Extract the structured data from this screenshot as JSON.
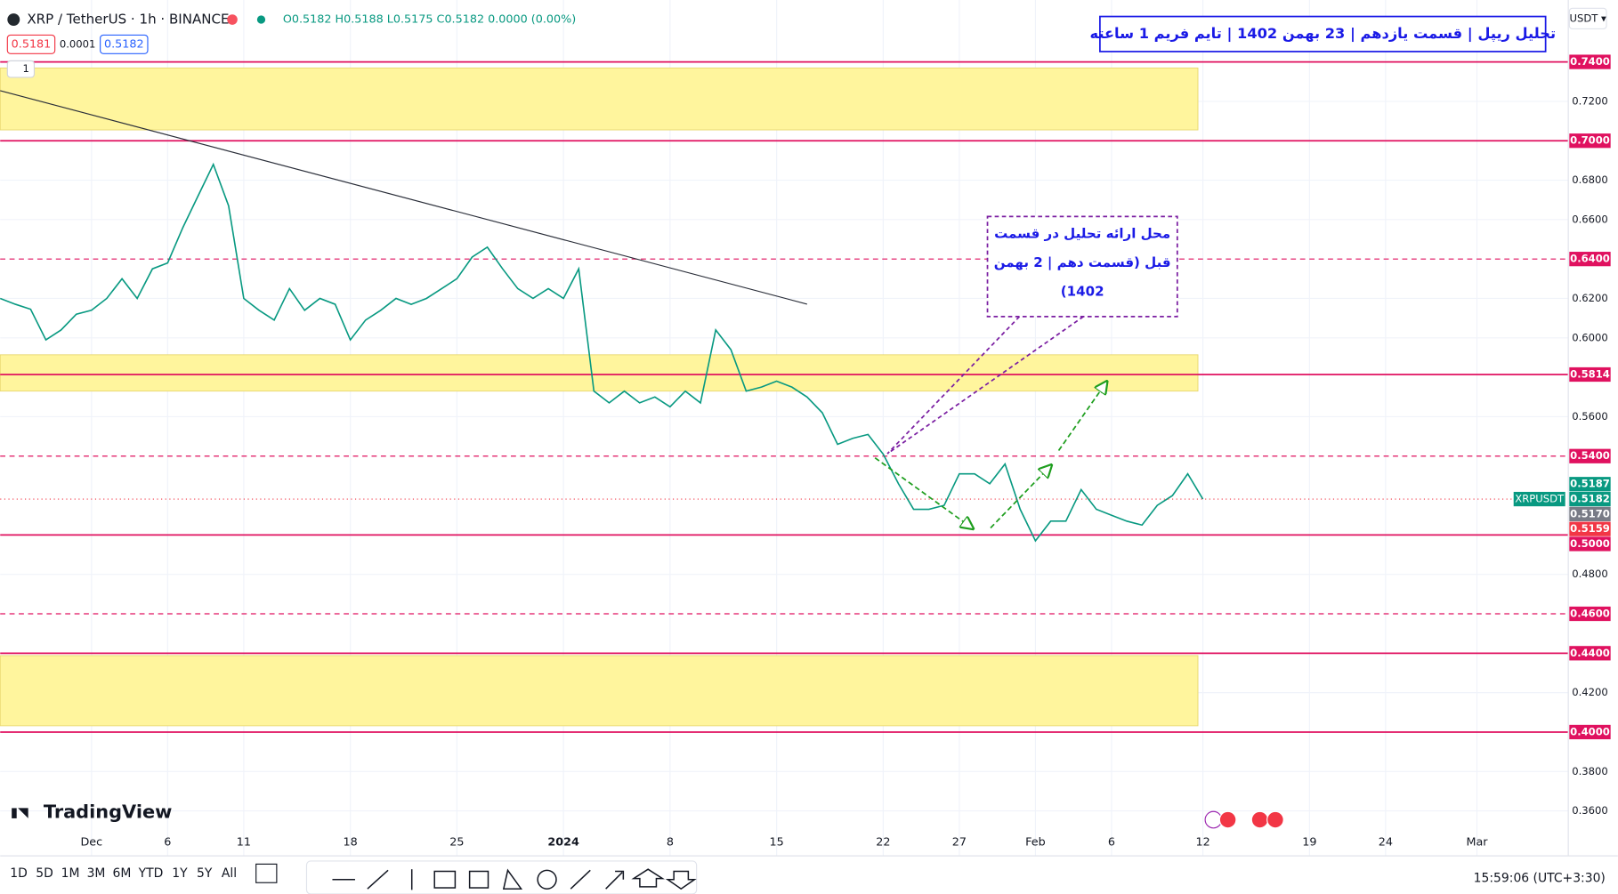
{
  "header": {
    "symbol": "XRP / TetherUS · 1h · BINANCE",
    "ohlc": "O0.5182 H0.5188 L0.5175 C0.5182 0.0000 (0.00%)",
    "sell": "0.5181",
    "spread": "0.0001",
    "buy": "0.5182",
    "currency": "USDT ▾",
    "interval": "1"
  },
  "chart_data": {
    "type": "line",
    "title": "تحلیل ریپل | قسمت یازدهم | 23 بهمن 1402 | تایم فریم 1 ساعته",
    "annotation": [
      "محل ارائه تحلیل در قسمت",
      "قبل (قسمت دهم | 2 بهمن",
      "1402)"
    ],
    "x": [
      "2023-11-25",
      "2023-11-26",
      "2023-11-27",
      "2023-11-28",
      "2023-11-29",
      "2023-11-30",
      "2023-12-01",
      "2023-12-02",
      "2023-12-03",
      "2023-12-04",
      "2023-12-05",
      "2023-12-06",
      "2023-12-07",
      "2023-12-08",
      "2023-12-09",
      "2023-12-10",
      "2023-12-11",
      "2023-12-12",
      "2023-12-13",
      "2023-12-14",
      "2023-12-15",
      "2023-12-16",
      "2023-12-17",
      "2023-12-18",
      "2023-12-19",
      "2023-12-20",
      "2023-12-21",
      "2023-12-22",
      "2023-12-23",
      "2023-12-24",
      "2023-12-25",
      "2023-12-26",
      "2023-12-27",
      "2023-12-28",
      "2023-12-29",
      "2023-12-30",
      "2023-12-31",
      "2024-01-01",
      "2024-01-02",
      "2024-01-03",
      "2024-01-04",
      "2024-01-05",
      "2024-01-06",
      "2024-01-07",
      "2024-01-08",
      "2024-01-09",
      "2024-01-10",
      "2024-01-11",
      "2024-01-12",
      "2024-01-13",
      "2024-01-14",
      "2024-01-15",
      "2024-01-16",
      "2024-01-17",
      "2024-01-18",
      "2024-01-19",
      "2024-01-20",
      "2024-01-21",
      "2024-01-22",
      "2024-01-23",
      "2024-01-24",
      "2024-01-25",
      "2024-01-26",
      "2024-01-27",
      "2024-01-28",
      "2024-01-29",
      "2024-01-30",
      "2024-01-31",
      "2024-02-01",
      "2024-02-02",
      "2024-02-03",
      "2024-02-04",
      "2024-02-05",
      "2024-02-06",
      "2024-02-07",
      "2024-02-08",
      "2024-02-09",
      "2024-02-10",
      "2024-02-11",
      "2024-02-12"
    ],
    "series": [
      {
        "name": "XRPUSDT",
        "color": "#089981",
        "values": [
          0.62,
          0.617,
          0.6145,
          0.599,
          0.604,
          0.612,
          0.614,
          0.62,
          0.63,
          0.62,
          0.635,
          0.638,
          0.656,
          0.672,
          0.688,
          0.667,
          0.62,
          0.614,
          0.609,
          0.625,
          0.614,
          0.62,
          0.617,
          0.599,
          0.609,
          0.614,
          0.62,
          0.617,
          0.62,
          0.625,
          0.63,
          0.641,
          0.646,
          0.635,
          0.625,
          0.62,
          0.625,
          0.62,
          0.635,
          0.573,
          0.567,
          0.573,
          0.567,
          0.57,
          0.565,
          0.573,
          0.567,
          0.604,
          0.594,
          0.573,
          0.575,
          0.578,
          0.575,
          0.57,
          0.562,
          0.546,
          0.549,
          0.551,
          0.541,
          0.526,
          0.513,
          0.513,
          0.515,
          0.531,
          0.531,
          0.526,
          0.536,
          0.513,
          0.497,
          0.507,
          0.507,
          0.523,
          0.513,
          0.51,
          0.507,
          0.505,
          0.515,
          0.52,
          0.531,
          0.5182
        ]
      }
    ],
    "xlim": [
      "2023-11-25",
      "2024-03-07"
    ],
    "ylim": [
      0.3372,
      0.7714
    ],
    "grid": true,
    "xticks": [
      {
        "value": "2023-12-01",
        "label": "Dec"
      },
      {
        "value": "2023-12-06",
        "label": "6"
      },
      {
        "value": "2023-12-11",
        "label": "11"
      },
      {
        "value": "2023-12-18",
        "label": "18"
      },
      {
        "value": "2023-12-25",
        "label": "25"
      },
      {
        "value": "2024-01-01",
        "label": "2024"
      },
      {
        "value": "2024-01-08",
        "label": "8"
      },
      {
        "value": "2024-01-15",
        "label": "15"
      },
      {
        "value": "2024-01-22",
        "label": "22"
      },
      {
        "value": "2024-01-27",
        "label": "27"
      },
      {
        "value": "2024-02-01",
        "label": "Feb"
      },
      {
        "value": "2024-02-06",
        "label": "6"
      },
      {
        "value": "2024-02-12",
        "label": "12"
      },
      {
        "value": "2024-02-19",
        "label": "19"
      },
      {
        "value": "2024-02-24",
        "label": "24"
      },
      {
        "value": "2024-03-01",
        "label": "Mar"
      }
    ],
    "yticks": [
      {
        "value": 0.72,
        "label": "0.7200"
      },
      {
        "value": 0.68,
        "label": "0.6800"
      },
      {
        "value": 0.66,
        "label": "0.6600"
      },
      {
        "value": 0.62,
        "label": "0.6200"
      },
      {
        "value": 0.6,
        "label": "0.6000"
      },
      {
        "value": 0.56,
        "label": "0.5600"
      },
      {
        "value": 0.48,
        "label": "0.4800"
      },
      {
        "value": 0.42,
        "label": "0.4200"
      },
      {
        "value": 0.38,
        "label": "0.3800"
      },
      {
        "value": 0.36,
        "label": "0.3600"
      }
    ],
    "levels": [
      {
        "value": 0.74,
        "label": "0.7400",
        "dashed": false
      },
      {
        "value": 0.7,
        "label": "0.7000",
        "dashed": false
      },
      {
        "value": 0.64,
        "label": "0.6400",
        "dashed": true
      },
      {
        "value": 0.5814,
        "label": "0.5814",
        "dashed": false
      },
      {
        "value": 0.54,
        "label": "0.5400",
        "dashed": true
      },
      {
        "value": 0.5,
        "label": "0.5000",
        "dashed": false
      },
      {
        "value": 0.46,
        "label": "0.4600",
        "dashed": true
      },
      {
        "value": 0.44,
        "label": "0.4400",
        "dashed": false
      },
      {
        "value": 0.4,
        "label": "0.4000",
        "dashed": false
      }
    ],
    "level_color": "#e0115f",
    "zones": [
      {
        "from": 0.7055,
        "to": 0.7369
      },
      {
        "from": 0.573,
        "to": 0.5914
      },
      {
        "from": 0.4032,
        "to": 0.4388
      }
    ],
    "zone_color": "#fff59d",
    "trendline": {
      "x": [
        "2023-11-25",
        "2024-01-17"
      ],
      "values": [
        0.7254,
        0.6171
      ],
      "color": "#2a2e39"
    },
    "price_tags": [
      {
        "value": 0.5187,
        "label": "0.5187",
        "color": "#089981"
      },
      {
        "value": 0.5182,
        "label": "0.5182",
        "color": "#089981"
      },
      {
        "value": 0.517,
        "label": "0.5170",
        "color": "#787b86"
      },
      {
        "value": 0.5159,
        "label": "0.5159",
        "color": "#f23645"
      }
    ]
  },
  "footer": {
    "logo": "TradingView",
    "ranges": [
      "1D",
      "5D",
      "1M",
      "3M",
      "6M",
      "YTD",
      "1Y",
      "5Y",
      "All"
    ],
    "clock": "15:59:06 (UTC+3:30)"
  }
}
